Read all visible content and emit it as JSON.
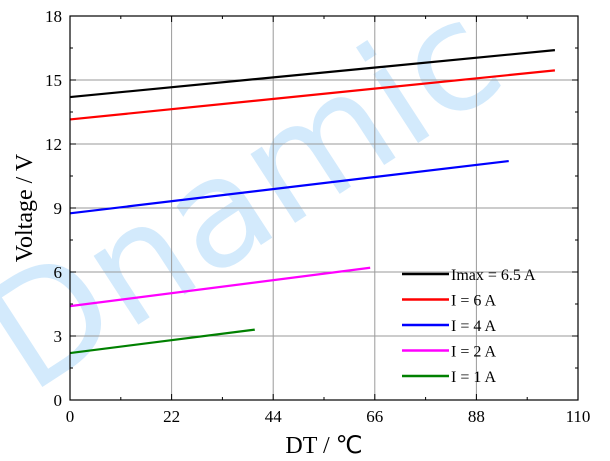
{
  "watermark": "Dnamic",
  "chart_data": {
    "type": "line",
    "title": "",
    "xlabel": "DT / ℃",
    "ylabel": "Voltage / V",
    "xlim": [
      0,
      110
    ],
    "ylim": [
      0,
      18
    ],
    "xticks": [
      0,
      22,
      44,
      66,
      88,
      110
    ],
    "yticks": [
      0,
      3,
      6,
      9,
      12,
      15,
      18
    ],
    "xtick_labels": [
      "0",
      "22",
      "44",
      "66",
      "88",
      "110"
    ],
    "ytick_labels": [
      "0",
      "3",
      "6",
      "9",
      "12",
      "15",
      "18"
    ],
    "grid": true,
    "legend_position": "bottom-right",
    "series": [
      {
        "name": "Imax = 6.5 A",
        "color": "#000000",
        "x": [
          0,
          105
        ],
        "y": [
          14.2,
          16.4
        ]
      },
      {
        "name": "I = 6 A",
        "color": "#ff0000",
        "x": [
          0,
          105
        ],
        "y": [
          13.15,
          15.45
        ]
      },
      {
        "name": "I = 4 A",
        "color": "#0000ff",
        "x": [
          0,
          95
        ],
        "y": [
          8.75,
          11.2
        ]
      },
      {
        "name": "I = 2 A",
        "color": "#ff00ff",
        "x": [
          0,
          65
        ],
        "y": [
          4.4,
          6.2
        ]
      },
      {
        "name": "I = 1 A",
        "color": "#008000",
        "x": [
          0,
          40
        ],
        "y": [
          2.2,
          3.3
        ]
      }
    ]
  }
}
